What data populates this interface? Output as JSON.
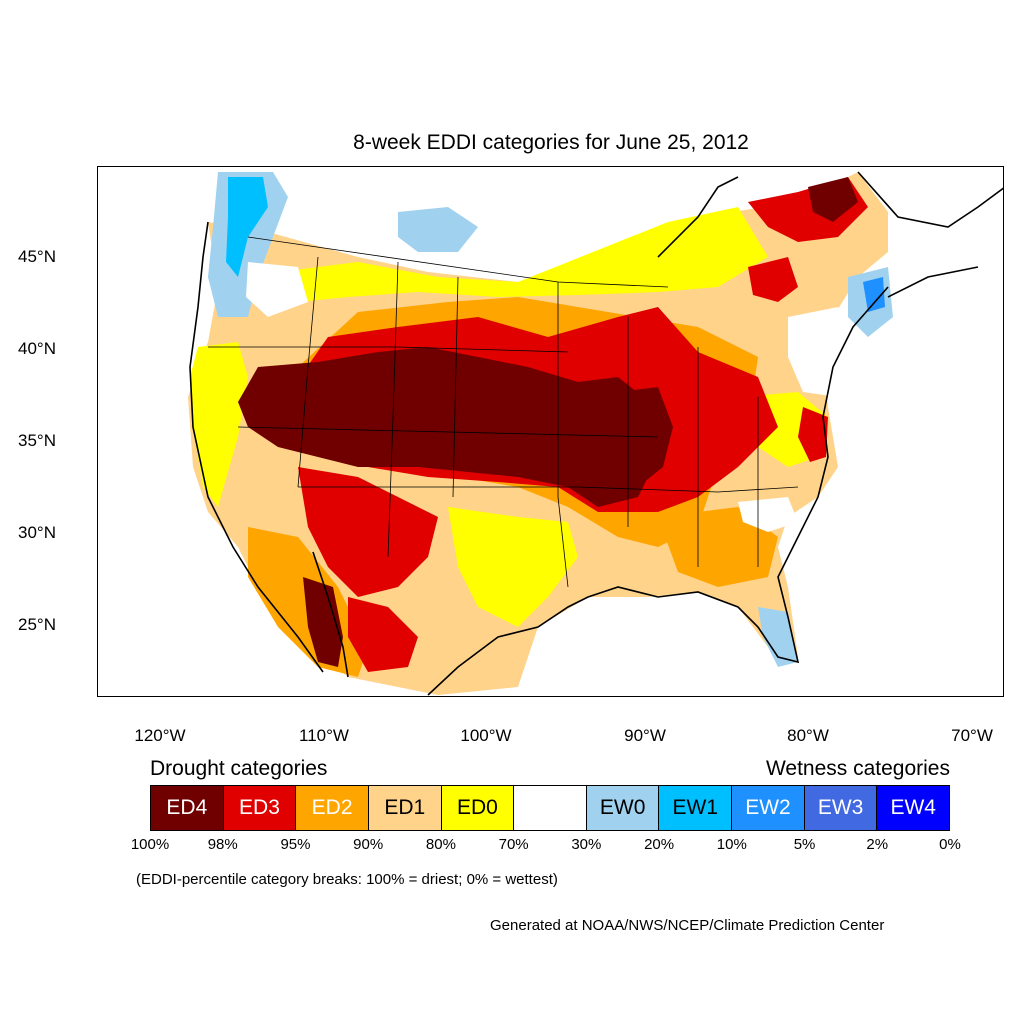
{
  "title": "8-week EDDI categories for June 25, 2012",
  "latitude_labels": [
    "45°N",
    "40°N",
    "35°N",
    "30°N",
    "25°N"
  ],
  "longitude_labels": [
    "120°W",
    "110°W",
    "100°W",
    "90°W",
    "80°W",
    "70°W"
  ],
  "legend": {
    "drought_heading": "Drought categories",
    "wetness_heading": "Wetness categories",
    "categories": [
      {
        "label": "ED4",
        "color": "#700000",
        "text_color": "#ffffff"
      },
      {
        "label": "ED3",
        "color": "#e00000",
        "text_color": "#ffffff"
      },
      {
        "label": "ED2",
        "color": "#ffa500",
        "text_color": "#ffffff"
      },
      {
        "label": "ED1",
        "color": "#ffd38a",
        "text_color": "#000000"
      },
      {
        "label": "ED0",
        "color": "#ffff00",
        "text_color": "#000000"
      },
      {
        "label": "",
        "color": "#ffffff",
        "text_color": "#000000"
      },
      {
        "label": "EW0",
        "color": "#a0d2f0",
        "text_color": "#000000"
      },
      {
        "label": "EW1",
        "color": "#00bfff",
        "text_color": "#000000"
      },
      {
        "label": "EW2",
        "color": "#1e90ff",
        "text_color": "#ffffff"
      },
      {
        "label": "EW3",
        "color": "#4169e1",
        "text_color": "#ffffff"
      },
      {
        "label": "EW4",
        "color": "#0000ff",
        "text_color": "#ffffff"
      }
    ],
    "percentile_breaks": [
      "100%",
      "98%",
      "95%",
      "90%",
      "80%",
      "70%",
      "30%",
      "20%",
      "10%",
      "5%",
      "2%",
      "0%"
    ]
  },
  "note": "(EDDI-percentile category breaks: 100% = driest; 0% = wettest)",
  "credit": "Generated at NOAA/NWS/NCEP/Climate Prediction Center"
}
